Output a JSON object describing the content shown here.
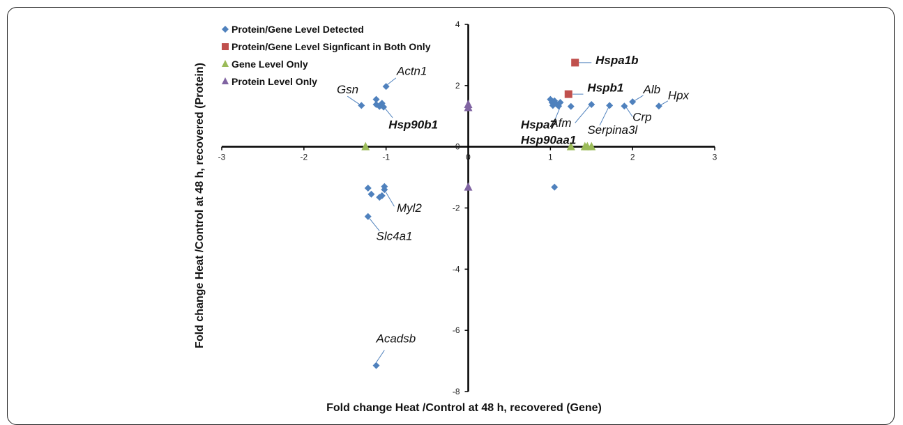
{
  "colors": {
    "detected": "#4f81bd",
    "significant": "#c0504d",
    "gene_only": "#9bbb59",
    "protein_only": "#8064a2",
    "axis": "#000000"
  },
  "chart_data": {
    "type": "scatter",
    "xlabel": "Fold change Heat /Control at 48 h, recovered (Gene)",
    "ylabel": "Fold change Heat /Control at 48 h, recovered (Protein)",
    "xlim": [
      -3,
      3
    ],
    "ylim": [
      -8,
      4
    ],
    "x_ticks": [
      "-3",
      "-2",
      "-1",
      "0",
      "1",
      "2",
      "3"
    ],
    "y_ticks": [
      "4",
      "2",
      "0",
      "-2",
      "-4",
      "-6",
      "-8"
    ],
    "legend_position": "top-left",
    "grid": false,
    "series": [
      {
        "name": "Protein/Gene Level Detected",
        "marker": "diamond",
        "color": "#4f81bd",
        "points": [
          {
            "x": -1.3,
            "y": 1.35
          },
          {
            "x": -1.12,
            "y": 1.55
          },
          {
            "x": -1.12,
            "y": 1.38
          },
          {
            "x": -1.08,
            "y": 1.32
          },
          {
            "x": -1.05,
            "y": 1.42
          },
          {
            "x": -1.03,
            "y": 1.3
          },
          {
            "x": -1.0,
            "y": 1.97
          },
          {
            "x": 1.0,
            "y": 1.55
          },
          {
            "x": 1.02,
            "y": 1.45
          },
          {
            "x": 1.03,
            "y": 1.35
          },
          {
            "x": 1.05,
            "y": 1.5
          },
          {
            "x": 1.07,
            "y": 1.4
          },
          {
            "x": 1.1,
            "y": 1.33
          },
          {
            "x": 1.12,
            "y": 1.45
          },
          {
            "x": 1.25,
            "y": 1.32
          },
          {
            "x": 1.5,
            "y": 1.38
          },
          {
            "x": 1.72,
            "y": 1.35
          },
          {
            "x": 1.9,
            "y": 1.33
          },
          {
            "x": 2.0,
            "y": 1.47
          },
          {
            "x": 2.32,
            "y": 1.33
          },
          {
            "x": -1.22,
            "y": -1.35
          },
          {
            "x": -1.18,
            "y": -1.55
          },
          {
            "x": -1.08,
            "y": -1.65
          },
          {
            "x": -1.05,
            "y": -1.6
          },
          {
            "x": -1.02,
            "y": -1.3
          },
          {
            "x": -1.02,
            "y": -1.4
          },
          {
            "x": -1.22,
            "y": -2.28
          },
          {
            "x": 1.05,
            "y": -1.32
          },
          {
            "x": -1.12,
            "y": -7.15
          }
        ]
      },
      {
        "name": "Protein/Gene Level Signficant in Both Only",
        "marker": "square",
        "color": "#c0504d",
        "points": [
          {
            "x": 1.3,
            "y": 2.75
          },
          {
            "x": 1.22,
            "y": 1.72
          }
        ]
      },
      {
        "name": "Gene Level Only",
        "marker": "triangle",
        "color": "#9bbb59",
        "points": [
          {
            "x": -1.25,
            "y": 0
          },
          {
            "x": 1.25,
            "y": 0
          },
          {
            "x": 1.42,
            "y": 0
          },
          {
            "x": 1.45,
            "y": 0
          },
          {
            "x": 1.5,
            "y": 0
          }
        ]
      },
      {
        "name": "Protein Level Only",
        "marker": "triangle",
        "color": "#8064a2",
        "points": [
          {
            "x": 0,
            "y": 1.38
          },
          {
            "x": 0,
            "y": 1.28
          },
          {
            "x": 0,
            "y": -1.32
          }
        ]
      }
    ],
    "annotations": [
      {
        "text": "Gsn",
        "bold": false,
        "label_x": -1.6,
        "label_y": 1.75,
        "line": [
          [
            -1.47,
            1.65
          ],
          [
            -1.32,
            1.38
          ]
        ]
      },
      {
        "text": "Actn1",
        "bold": false,
        "label_x": -0.87,
        "label_y": 2.35,
        "line": [
          [
            -0.88,
            2.25
          ],
          [
            -1.0,
            2.0
          ]
        ]
      },
      {
        "text": "Hsp90b1",
        "bold": true,
        "label_x": -0.97,
        "label_y": 0.6,
        "line": [
          [
            -0.92,
            0.95
          ],
          [
            -1.02,
            1.28
          ]
        ]
      },
      {
        "text": "Myl2",
        "bold": false,
        "label_x": -0.87,
        "label_y": -2.12,
        "line": [
          [
            -0.9,
            -1.95
          ],
          [
            -1.01,
            -1.45
          ]
        ]
      },
      {
        "text": "Slc4a1",
        "bold": false,
        "label_x": -1.12,
        "label_y": -3.05,
        "line": [
          [
            -1.08,
            -2.75
          ],
          [
            -1.2,
            -2.35
          ]
        ]
      },
      {
        "text": "Acadsb",
        "bold": false,
        "label_x": -1.12,
        "label_y": -6.4,
        "line": [
          [
            -1.02,
            -6.65
          ],
          [
            -1.12,
            -7.05
          ]
        ]
      },
      {
        "text": "Hspa1b",
        "bold": true,
        "label_x": 1.55,
        "label_y": 2.7,
        "line": [
          [
            1.34,
            2.75
          ],
          [
            1.5,
            2.75
          ]
        ]
      },
      {
        "text": "Hspb1",
        "bold": true,
        "label_x": 1.45,
        "label_y": 1.8,
        "line": [
          [
            1.27,
            1.72
          ],
          [
            1.4,
            1.72
          ]
        ]
      },
      {
        "text": "Alb",
        "bold": false,
        "label_x": 2.13,
        "label_y": 1.75,
        "line": [
          [
            2.02,
            1.5
          ],
          [
            2.13,
            1.68
          ]
        ]
      },
      {
        "text": "Hpx",
        "bold": false,
        "label_x": 2.43,
        "label_y": 1.55,
        "line": [
          [
            2.34,
            1.36
          ],
          [
            2.43,
            1.5
          ]
        ]
      },
      {
        "text": "Crp",
        "bold": false,
        "label_x": 2.0,
        "label_y": 0.85,
        "line": [
          [
            1.92,
            1.3
          ],
          [
            2.0,
            0.98
          ]
        ]
      },
      {
        "text": "Afm",
        "bold": false,
        "label_x": 1.0,
        "label_y": 0.65,
        "line": [
          [
            1.3,
            0.78
          ],
          [
            1.48,
            1.35
          ]
        ]
      },
      {
        "text": "Serpina3l",
        "bold": false,
        "label_x": 1.45,
        "label_y": 0.43,
        "line": [
          [
            1.6,
            0.7
          ],
          [
            1.71,
            1.3
          ]
        ]
      },
      {
        "text": "Hspa7",
        "bold": true,
        "label_x": 0.64,
        "label_y": 0.6,
        "line": [
          [
            1.05,
            0.85
          ],
          [
            1.12,
            1.3
          ]
        ]
      },
      {
        "text": "Hsp90aa1",
        "bold": true,
        "label_x": 0.64,
        "label_y": 0.1,
        "line": []
      }
    ]
  }
}
